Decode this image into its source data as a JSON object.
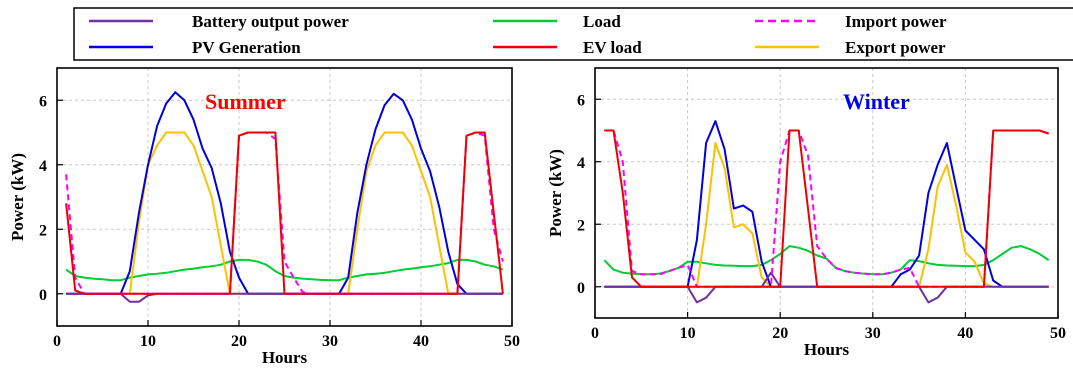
{
  "legend": {
    "entries": [
      {
        "series": "battery",
        "label": "Battery output power",
        "color": "#7030a0",
        "dash": false
      },
      {
        "series": "load",
        "label": "Load",
        "color": "#00cc33",
        "dash": false
      },
      {
        "series": "import",
        "label": "Import power",
        "color": "#ff00ff",
        "dash": true
      },
      {
        "series": "pv",
        "label": "PV Generation",
        "color": "#0000dd",
        "dash": false
      },
      {
        "series": "ev",
        "label": "EV load",
        "color": "#ee0000",
        "dash": false
      },
      {
        "series": "export",
        "label": "Export power",
        "color": "#ffc000",
        "dash": false
      }
    ]
  },
  "chart_data": [
    {
      "type": "line",
      "title": "Summer",
      "title_color": "#ff0000",
      "xlabel": "Hours",
      "ylabel": "Power (kW)",
      "xlim": [
        0,
        50
      ],
      "ylim": [
        -1,
        7
      ],
      "xticks": [
        0,
        10,
        20,
        30,
        40,
        50
      ],
      "yticks": [
        0,
        2,
        4,
        6
      ],
      "grid": true,
      "x": [
        1,
        2,
        3,
        4,
        5,
        6,
        7,
        8,
        9,
        10,
        11,
        12,
        13,
        14,
        15,
        16,
        17,
        18,
        19,
        20,
        21,
        22,
        23,
        24,
        25,
        26,
        27,
        28,
        29,
        30,
        31,
        32,
        33,
        34,
        35,
        36,
        37,
        38,
        39,
        40,
        41,
        42,
        43,
        44,
        45,
        46,
        47,
        48,
        49
      ],
      "series": [
        {
          "name": "Load",
          "key": "load",
          "color": "#00cc33",
          "dash": false,
          "values": [
            0.75,
            0.55,
            0.5,
            0.47,
            0.45,
            0.42,
            0.42,
            0.5,
            0.55,
            0.6,
            0.62,
            0.65,
            0.7,
            0.75,
            0.78,
            0.82,
            0.85,
            0.9,
            1.0,
            1.05,
            1.05,
            1.0,
            0.9,
            0.7,
            0.55,
            0.5,
            0.47,
            0.45,
            0.43,
            0.42,
            0.42,
            0.5,
            0.55,
            0.6,
            0.62,
            0.65,
            0.7,
            0.75,
            0.78,
            0.82,
            0.85,
            0.9,
            0.95,
            1.05,
            1.05,
            1.0,
            0.9,
            0.85,
            0.75
          ]
        },
        {
          "name": "Export power",
          "key": "export",
          "color": "#ffc000",
          "dash": false,
          "values": [
            0,
            0,
            0,
            0,
            0,
            0,
            0,
            0,
            2.2,
            4.0,
            4.6,
            5.0,
            5.0,
            5.0,
            4.6,
            3.8,
            3.0,
            1.5,
            0,
            0,
            0,
            0,
            0,
            0,
            0,
            0,
            0,
            0,
            0,
            0,
            0,
            0,
            2.0,
            3.8,
            4.6,
            5.0,
            5.0,
            5.0,
            4.6,
            3.8,
            3.0,
            1.5,
            0,
            0,
            0,
            0,
            0,
            0,
            0
          ]
        },
        {
          "name": "PV Generation",
          "key": "pv",
          "color": "#0000dd",
          "dash": false,
          "values": [
            0,
            0,
            0,
            0,
            0,
            0,
            0,
            0.7,
            2.5,
            4.0,
            5.2,
            5.9,
            6.25,
            6.0,
            5.4,
            4.5,
            3.9,
            2.8,
            1.3,
            0.5,
            0,
            0,
            0,
            0,
            0,
            0,
            0,
            0,
            0,
            0,
            0,
            0.5,
            2.5,
            4.0,
            5.1,
            5.85,
            6.2,
            6.0,
            5.4,
            4.5,
            3.8,
            2.7,
            1.3,
            0.3,
            0,
            0,
            0,
            0,
            0
          ]
        },
        {
          "name": "Battery output power",
          "key": "battery",
          "color": "#7030a0",
          "dash": false,
          "values": [
            0,
            0,
            0,
            0,
            0,
            0,
            0,
            -0.25,
            -0.25,
            -0.05,
            0,
            0,
            0,
            0,
            0,
            0,
            0,
            0,
            0,
            0,
            0,
            0,
            0,
            0,
            0,
            0,
            0,
            0,
            0,
            0,
            0,
            0,
            0,
            0,
            0,
            0,
            0,
            0,
            0,
            0,
            0,
            0,
            0,
            0,
            0,
            0,
            0,
            0,
            0
          ]
        },
        {
          "name": "Import power",
          "key": "import",
          "color": "#ff00ff",
          "dash": true,
          "values": [
            3.7,
            0.5,
            0,
            0,
            0,
            0,
            0,
            0,
            0,
            0,
            0,
            0,
            0,
            0,
            0,
            0,
            0,
            0,
            0,
            4.9,
            5.0,
            5.0,
            5.0,
            4.8,
            1.0,
            0.5,
            0.05,
            0,
            0,
            0,
            0,
            0,
            0,
            0,
            0,
            0,
            0,
            0,
            0,
            0,
            0,
            0,
            0,
            0,
            4.9,
            5.0,
            4.9,
            2.0,
            1.0
          ]
        },
        {
          "name": "EV load",
          "key": "ev",
          "color": "#ee0000",
          "dash": false,
          "values": [
            2.8,
            0.1,
            0,
            0,
            0,
            0,
            0,
            0,
            0,
            0,
            0,
            0,
            0,
            0,
            0,
            0,
            0,
            0,
            0,
            4.9,
            5.0,
            5.0,
            5.0,
            5.0,
            0,
            0,
            0,
            0,
            0,
            0,
            0,
            0,
            0,
            0,
            0,
            0,
            0,
            0,
            0,
            0,
            0,
            0,
            0,
            0,
            4.9,
            5.0,
            5.0,
            2.5,
            0
          ]
        }
      ]
    },
    {
      "type": "line",
      "title": "Winter",
      "title_color": "#0000ee",
      "xlabel": "Hours",
      "ylabel": "Power (kW)",
      "xlim": [
        0,
        50
      ],
      "ylim": [
        -1,
        7
      ],
      "xticks": [
        0,
        10,
        20,
        30,
        40,
        50
      ],
      "yticks": [
        0,
        2,
        4,
        6
      ],
      "grid": true,
      "x": [
        1,
        2,
        3,
        4,
        5,
        6,
        7,
        8,
        9,
        10,
        11,
        12,
        13,
        14,
        15,
        16,
        17,
        18,
        19,
        20,
        21,
        22,
        23,
        24,
        25,
        26,
        27,
        28,
        29,
        30,
        31,
        32,
        33,
        34,
        35,
        36,
        37,
        38,
        39,
        40,
        41,
        42,
        43,
        44,
        45,
        46,
        47,
        48,
        49
      ],
      "series": [
        {
          "name": "Load",
          "key": "load",
          "color": "#00cc33",
          "dash": false,
          "values": [
            0.85,
            0.55,
            0.45,
            0.42,
            0.4,
            0.4,
            0.42,
            0.5,
            0.6,
            0.8,
            0.8,
            0.75,
            0.7,
            0.68,
            0.67,
            0.66,
            0.66,
            0.7,
            0.85,
            1.05,
            1.3,
            1.25,
            1.15,
            1.0,
            0.9,
            0.6,
            0.5,
            0.45,
            0.42,
            0.4,
            0.4,
            0.45,
            0.55,
            0.85,
            0.82,
            0.75,
            0.7,
            0.68,
            0.67,
            0.66,
            0.66,
            0.7,
            0.85,
            1.05,
            1.25,
            1.3,
            1.2,
            1.05,
            0.85
          ]
        },
        {
          "name": "Export power",
          "key": "export",
          "color": "#ffc000",
          "dash": false,
          "values": [
            0,
            0,
            0,
            0,
            0,
            0,
            0,
            0,
            0,
            0,
            0,
            2.0,
            4.6,
            3.8,
            1.9,
            2.0,
            1.7,
            0.3,
            0,
            0,
            0,
            0,
            0,
            0,
            0,
            0,
            0,
            0,
            0,
            0,
            0,
            0,
            0,
            0,
            0,
            1.2,
            3.2,
            3.9,
            2.6,
            1.1,
            0.8,
            0.1,
            0,
            0,
            0,
            0,
            0,
            0,
            0
          ]
        },
        {
          "name": "PV Generation",
          "key": "pv",
          "color": "#0000dd",
          "dash": false,
          "values": [
            0,
            0,
            0,
            0,
            0,
            0,
            0,
            0,
            0,
            0,
            1.5,
            4.6,
            5.3,
            4.4,
            2.5,
            2.6,
            2.4,
            0.8,
            0,
            0,
            0,
            0,
            0,
            0,
            0,
            0,
            0,
            0,
            0,
            0,
            0,
            0,
            0.4,
            0.55,
            1.0,
            3.0,
            3.9,
            4.6,
            3.2,
            1.8,
            1.5,
            1.2,
            0.2,
            0,
            0,
            0,
            0,
            0,
            0
          ]
        },
        {
          "name": "Battery output power",
          "key": "battery",
          "color": "#7030a0",
          "dash": false,
          "values": [
            0,
            0,
            0,
            0,
            0,
            0,
            0,
            0,
            0,
            0,
            -0.5,
            -0.35,
            0,
            0,
            0,
            0,
            0,
            0,
            0.45,
            0,
            0,
            0,
            0,
            0,
            0,
            0,
            0,
            0,
            0,
            0,
            0,
            0,
            0,
            0,
            0,
            -0.5,
            -0.35,
            0,
            0,
            0,
            0,
            0,
            0,
            0,
            0,
            0,
            0,
            0,
            0
          ]
        },
        {
          "name": "Import power",
          "key": "import",
          "color": "#ff00ff",
          "dash": true,
          "values": [
            5.0,
            5.0,
            4.0,
            0.5,
            0.4,
            0.4,
            0.4,
            0.5,
            0.6,
            0.7,
            0,
            0,
            0,
            0,
            0,
            0,
            0,
            0,
            0,
            4.0,
            5.0,
            5.0,
            4.2,
            1.3,
            0.9,
            0.6,
            0.5,
            0.45,
            0.42,
            0.4,
            0.4,
            0.45,
            0.55,
            0.6,
            0,
            0,
            0,
            0,
            0,
            0,
            0,
            0,
            5.0,
            5.0,
            5.0,
            5.0,
            5.0,
            5.0,
            4.9
          ]
        },
        {
          "name": "EV load",
          "key": "ev",
          "color": "#ee0000",
          "dash": false,
          "values": [
            5.0,
            5.0,
            3.0,
            0.3,
            0,
            0,
            0,
            0,
            0,
            0,
            0,
            0,
            0,
            0,
            0,
            0,
            0,
            0,
            0,
            0,
            5.0,
            5.0,
            2.5,
            0,
            0,
            0,
            0,
            0,
            0,
            0,
            0,
            0,
            0,
            0,
            0,
            0,
            0,
            0,
            0,
            0,
            0,
            0,
            5.0,
            5.0,
            5.0,
            5.0,
            5.0,
            5.0,
            4.9
          ]
        }
      ]
    }
  ]
}
